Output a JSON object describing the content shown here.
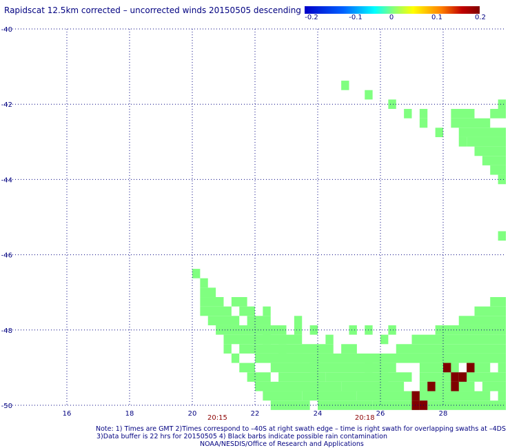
{
  "chart_data": {
    "type": "heatmap",
    "title": "Rapidscat 12.5km corrected – uncorrected winds 20150505 descending",
    "colorbar": {
      "ticks": [
        "-0.2",
        "-0.1",
        "0",
        "0.1",
        "0.2"
      ],
      "range": [
        -0.2,
        0.2
      ],
      "colors": [
        "#0000c8",
        "#0080ff",
        "#00ffff",
        "#80ff80",
        "#ffff00",
        "#ff8000",
        "#c00000",
        "#800000"
      ]
    },
    "x_range": [
      14.0,
      30.0
    ],
    "y_range": [
      -50.0,
      -40.0
    ],
    "x_ticks": [
      16,
      18,
      20,
      22,
      24,
      26,
      28
    ],
    "y_ticks": [
      -40,
      -42,
      -44,
      -46,
      -48,
      -50
    ],
    "y_tick_labels": [
      "-40",
      "-42",
      "-44",
      "-46",
      "-48",
      "-50"
    ],
    "time_labels": [
      {
        "lon": 20.8,
        "text": "20:15"
      },
      {
        "lon": 25.5,
        "text": "20:18"
      }
    ],
    "grid": true,
    "cell_size_deg": 0.25,
    "value_colors": {
      "zero": "#80ff80",
      "high": "#800000"
    },
    "zero_cells": [
      [
        20.0,
        -46.5,
        20.25
      ],
      [
        20.25,
        -46.75,
        20.5
      ],
      [
        20.25,
        -47.0,
        20.75
      ],
      [
        20.25,
        -47.25,
        21.0
      ],
      [
        20.25,
        -47.5,
        21.25
      ],
      [
        20.5,
        -47.75,
        21.5
      ],
      [
        20.75,
        -48.0,
        22.0
      ],
      [
        21.0,
        -48.25,
        22.5
      ],
      [
        21.5,
        -48.5,
        23.0
      ],
      [
        22.0,
        -48.75,
        23.5
      ],
      [
        22.5,
        -49.0,
        24.0
      ],
      [
        22.75,
        -49.25,
        24.25
      ],
      [
        23.0,
        -49.5,
        24.75
      ],
      [
        23.5,
        -49.75,
        25.25
      ],
      [
        24.0,
        -50.0,
        25.75
      ],
      [
        21.25,
        -47.25,
        21.75
      ],
      [
        21.5,
        -47.5,
        22.0
      ],
      [
        21.75,
        -47.75,
        22.5
      ],
      [
        22.0,
        -48.0,
        23.0
      ],
      [
        22.25,
        -48.25,
        23.5
      ],
      [
        22.75,
        -48.5,
        24.5
      ],
      [
        23.25,
        -48.75,
        25.0
      ],
      [
        23.75,
        -49.0,
        25.75
      ],
      [
        24.25,
        -49.25,
        26.25
      ],
      [
        24.75,
        -49.5,
        26.75
      ],
      [
        25.25,
        -49.75,
        27.0
      ],
      [
        25.75,
        -50.0,
        27.25
      ],
      [
        21.5,
        -49.0,
        22.0
      ],
      [
        21.75,
        -49.25,
        22.5
      ],
      [
        22.0,
        -49.5,
        23.0
      ],
      [
        22.25,
        -49.75,
        23.5
      ],
      [
        22.5,
        -50.0,
        23.75
      ],
      [
        23.25,
        -47.75,
        23.5
      ],
      [
        23.75,
        -48.0,
        24.0
      ],
      [
        24.25,
        -48.25,
        24.5
      ],
      [
        24.75,
        -48.5,
        25.25
      ],
      [
        25.0,
        -48.75,
        26.0
      ],
      [
        25.5,
        -49.0,
        26.5
      ],
      [
        26.0,
        -49.25,
        27.0
      ],
      [
        26.0,
        -48.75,
        30.0
      ],
      [
        26.5,
        -48.5,
        30.0
      ],
      [
        27.0,
        -48.25,
        30.0
      ],
      [
        27.75,
        -48.0,
        30.0
      ],
      [
        28.5,
        -47.75,
        30.0
      ],
      [
        29.0,
        -47.5,
        30.0
      ],
      [
        29.5,
        -47.25,
        30.0
      ],
      [
        27.25,
        -49.0,
        30.0
      ],
      [
        27.25,
        -49.25,
        30.0
      ],
      [
        27.25,
        -49.5,
        30.0
      ],
      [
        27.0,
        -49.75,
        30.0
      ],
      [
        27.5,
        -50.0,
        30.0
      ],
      [
        28.75,
        -43.0,
        30.0
      ],
      [
        29.0,
        -43.25,
        30.0
      ],
      [
        29.25,
        -43.5,
        30.0
      ],
      [
        29.5,
        -43.75,
        30.0
      ],
      [
        29.75,
        -44.0,
        30.0
      ],
      [
        28.5,
        -42.75,
        30.0
      ],
      [
        28.25,
        -42.5,
        29.5
      ],
      [
        28.25,
        -42.25,
        29.0
      ],
      [
        29.5,
        -42.25,
        30.0
      ],
      [
        29.75,
        -42.0,
        30.0
      ],
      [
        29.75,
        -45.5,
        30.0
      ],
      [
        24.75,
        -41.5,
        25.0
      ],
      [
        25.5,
        -41.75,
        25.75
      ],
      [
        26.25,
        -42.0,
        26.5
      ],
      [
        26.75,
        -42.25,
        27.0
      ],
      [
        27.25,
        -42.25,
        27.5
      ],
      [
        27.25,
        -42.5,
        27.5
      ],
      [
        27.75,
        -42.75,
        28.0
      ],
      [
        28.5,
        -43.0,
        28.75
      ],
      [
        21.0,
        -48.5,
        21.25
      ],
      [
        21.25,
        -48.75,
        21.5
      ],
      [
        22.25,
        -47.5,
        22.5
      ],
      [
        23.25,
        -48.0,
        23.5
      ],
      [
        25.0,
        -48.0,
        25.25
      ],
      [
        25.5,
        -48.0,
        25.75
      ],
      [
        26.0,
        -48.25,
        26.25
      ],
      [
        26.25,
        -48.0,
        26.5
      ]
    ],
    "high_cells": [
      [
        28.0,
        -49.0
      ],
      [
        28.25,
        -49.25
      ],
      [
        28.5,
        -49.25
      ],
      [
        28.75,
        -49.0
      ],
      [
        27.5,
        -49.5
      ],
      [
        28.25,
        -49.5
      ],
      [
        27.0,
        -50.0
      ],
      [
        27.25,
        -50.0
      ],
      [
        27.0,
        -49.75
      ]
    ],
    "empty_cells": [
      [
        29.5,
        -49.0
      ],
      [
        29.0,
        -49.5
      ],
      [
        29.5,
        -49.75
      ],
      [
        28.5,
        -49.0
      ]
    ]
  },
  "notes": {
    "line1": "Note: 1) Times are GMT 2)Times correspond to –40S at right swath edge – time is right swath for overlapping swaths at –4DS",
    "line2": "3)Data buffer is 22 hrs for 20150505 4) Black barbs indicate possible rain contamination",
    "line3": "NOAA/NESDIS/Office of Research and Applications"
  }
}
